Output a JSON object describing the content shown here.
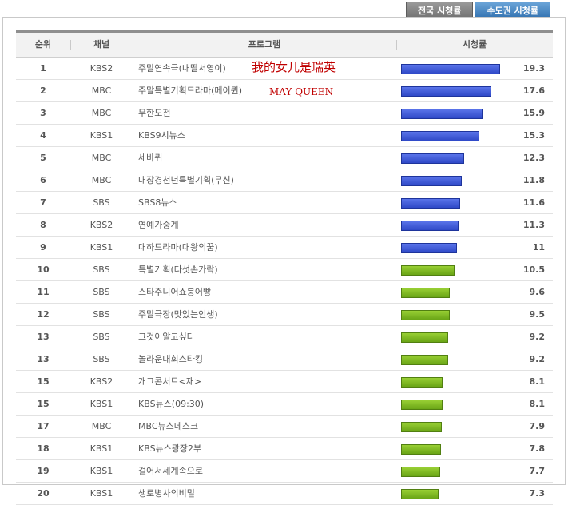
{
  "tabs": [
    {
      "label": "전국 시청률",
      "active": false
    },
    {
      "label": "수도권 시청률",
      "active": true
    }
  ],
  "columns": {
    "rank": "순위",
    "channel": "채널",
    "program": "프로그램",
    "rating": "시청률"
  },
  "rows": [
    {
      "rank": "1",
      "channel": "KBS2",
      "program": "주말연속극(내딸서영이)",
      "rating": "19.3",
      "level": 0.193,
      "color": "blue"
    },
    {
      "rank": "2",
      "channel": "MBC",
      "program": "주말특별기획드라마(메이퀸)",
      "rating": "17.6",
      "level": 0.176,
      "color": "blue"
    },
    {
      "rank": "3",
      "channel": "MBC",
      "program": "무한도전",
      "rating": "15.9",
      "level": 0.159,
      "color": "blue"
    },
    {
      "rank": "4",
      "channel": "KBS1",
      "program": "KBS9시뉴스",
      "rating": "15.3",
      "level": 0.153,
      "color": "blue"
    },
    {
      "rank": "5",
      "channel": "MBC",
      "program": "세바퀴",
      "rating": "12.3",
      "level": 0.123,
      "color": "blue"
    },
    {
      "rank": "6",
      "channel": "MBC",
      "program": "대장경천년특별기획(무신)",
      "rating": "11.8",
      "level": 0.118,
      "color": "blue"
    },
    {
      "rank": "7",
      "channel": "SBS",
      "program": "SBS8뉴스",
      "rating": "11.6",
      "level": 0.116,
      "color": "blue"
    },
    {
      "rank": "8",
      "channel": "KBS2",
      "program": "연예가중계",
      "rating": "11.3",
      "level": 0.113,
      "color": "blue"
    },
    {
      "rank": "9",
      "channel": "KBS1",
      "program": "대하드라마(대왕의꿈)",
      "rating": "11",
      "level": 0.11,
      "color": "blue"
    },
    {
      "rank": "10",
      "channel": "SBS",
      "program": "특별기획(다섯손가락)",
      "rating": "10.5",
      "level": 0.105,
      "color": "green"
    },
    {
      "rank": "11",
      "channel": "SBS",
      "program": "스타주니어쇼붕어빵",
      "rating": "9.6",
      "level": 0.096,
      "color": "green"
    },
    {
      "rank": "12",
      "channel": "SBS",
      "program": "주말극장(맛있는인생)",
      "rating": "9.5",
      "level": 0.095,
      "color": "green"
    },
    {
      "rank": "13",
      "channel": "SBS",
      "program": "그것이알고싶다",
      "rating": "9.2",
      "level": 0.092,
      "color": "green"
    },
    {
      "rank": "13",
      "channel": "SBS",
      "program": "놀라운대회스타킹",
      "rating": "9.2",
      "level": 0.092,
      "color": "green"
    },
    {
      "rank": "15",
      "channel": "KBS2",
      "program": "개그콘서트<재>",
      "rating": "8.1",
      "level": 0.081,
      "color": "green"
    },
    {
      "rank": "15",
      "channel": "KBS1",
      "program": "KBS뉴스(09:30)",
      "rating": "8.1",
      "level": 0.081,
      "color": "green"
    },
    {
      "rank": "17",
      "channel": "MBC",
      "program": "MBC뉴스데스크",
      "rating": "7.9",
      "level": 0.079,
      "color": "green"
    },
    {
      "rank": "18",
      "channel": "KBS1",
      "program": "KBS뉴스광장2부",
      "rating": "7.8",
      "level": 0.078,
      "color": "green"
    },
    {
      "rank": "19",
      "channel": "KBS1",
      "program": "걸어서세계속으로",
      "rating": "7.7",
      "level": 0.077,
      "color": "green"
    },
    {
      "rank": "20",
      "channel": "KBS1",
      "program": "생로병사의비밀",
      "rating": "7.3",
      "level": 0.073,
      "color": "green"
    }
  ],
  "annotations": {
    "row1": "我的女儿是瑞英",
    "row2": "MAY QUEEN"
  },
  "colors": {
    "blue": "#2f49c7",
    "green": "#6aa516",
    "annotation": "#c00000"
  }
}
